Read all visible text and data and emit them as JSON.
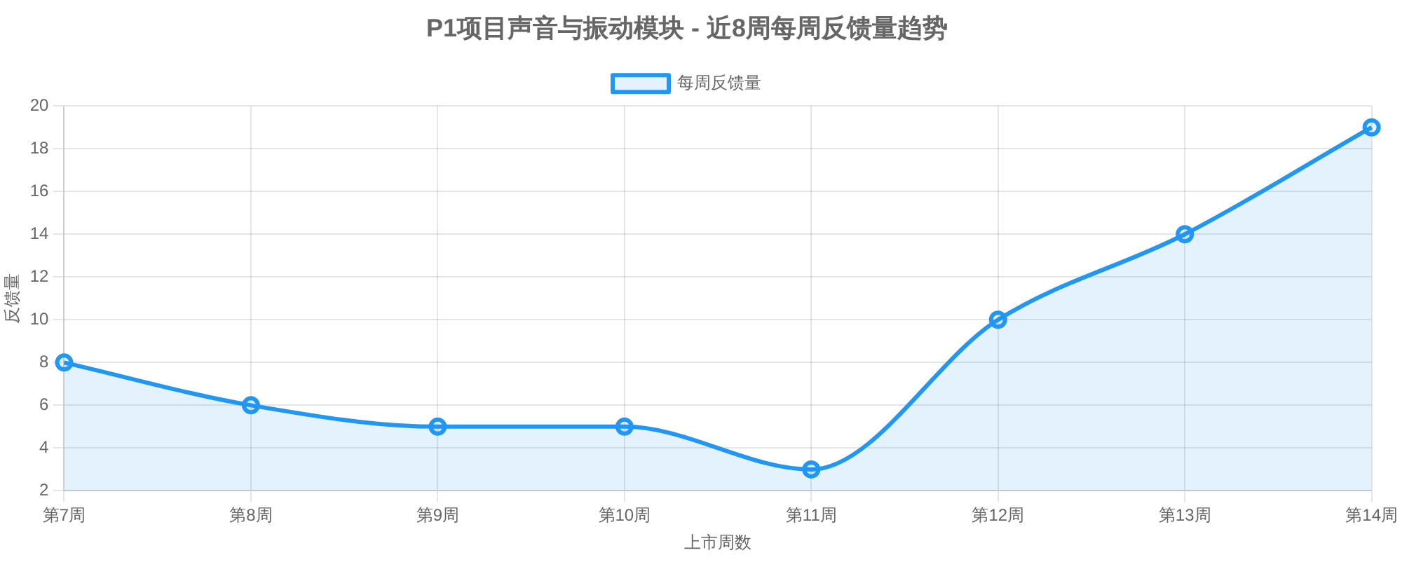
{
  "chart_data": {
    "type": "area",
    "title": "P1项目声音与振动模块 - 近8周每周反馈量趋势",
    "xlabel": "上市周数",
    "ylabel": "反馈量",
    "categories": [
      "第7周",
      "第8周",
      "第9周",
      "第10周",
      "第11周",
      "第12周",
      "第13周",
      "第14周"
    ],
    "series": [
      {
        "name": "每周反馈量",
        "color": "#2196f3",
        "values": [
          8,
          6,
          5,
          5,
          3,
          10,
          14,
          19
        ]
      }
    ],
    "ylim": [
      2,
      20
    ],
    "yticks": [
      2,
      4,
      6,
      8,
      10,
      12,
      14,
      16,
      18,
      20
    ],
    "grid": true,
    "legend": "top",
    "marker": "circle"
  }
}
